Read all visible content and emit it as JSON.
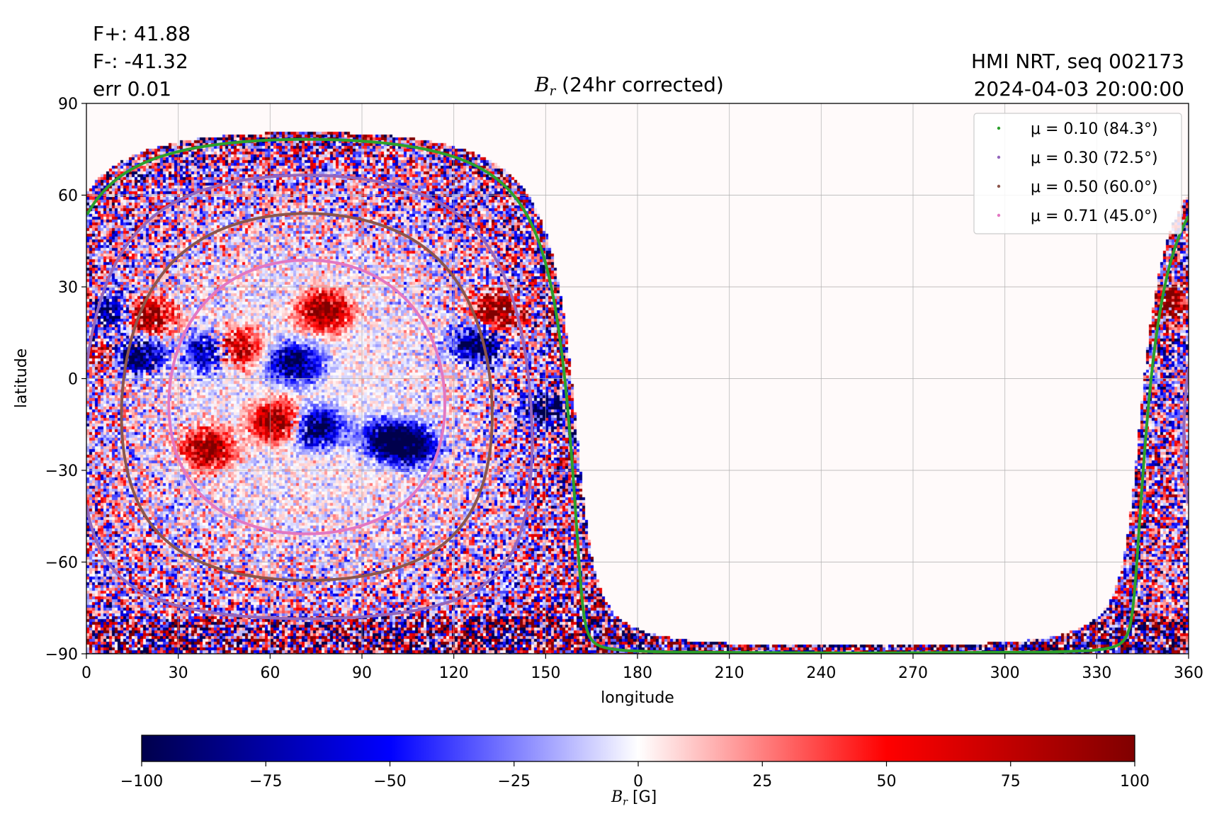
{
  "header": {
    "flux_plus": "F+: 41.88",
    "flux_minus": "F-: -41.32",
    "error": "err 0.01",
    "source": "HMI NRT, seq 002173",
    "datetime": "2024-04-03 20:00:00",
    "title_symbol": "B",
    "title_subscript": "r",
    "title_suffix": " (24hr corrected)"
  },
  "colorbar": {
    "label_symbol": "B",
    "label_subscript": "r",
    "label_unit": " [G]",
    "ticks": [
      "−100",
      "−75",
      "−50",
      "−25",
      "0",
      "25",
      "50",
      "75",
      "100"
    ],
    "range": [
      -100,
      100
    ],
    "colormap": "seismic",
    "colors": {
      "low": "#00004c",
      "mid_low": "#0000ff",
      "zero": "#ffffff",
      "mid_high": "#ff0000",
      "high": "#800000"
    }
  },
  "chart_data": {
    "type": "heatmap",
    "title": "B_r (24hr corrected)",
    "xlabel": "longitude",
    "ylabel": "latitude",
    "xlim": [
      0,
      360
    ],
    "ylim": [
      -90,
      90
    ],
    "xticks": [
      0,
      30,
      60,
      90,
      120,
      150,
      180,
      210,
      240,
      270,
      300,
      330,
      360
    ],
    "yticks": [
      -90,
      -60,
      -30,
      0,
      30,
      60,
      90
    ],
    "ytick_labels": [
      "−90",
      "−60",
      "−30",
      "0",
      "30",
      "60",
      "90"
    ],
    "grid": true,
    "legend_position": "top-right",
    "disk_center": {
      "lon": 72,
      "lat": -6
    },
    "series": [
      {
        "name": "μ = 0.10 (84.3°)",
        "mu": 0.1,
        "angle_deg": 84.3,
        "color": "#2ca02c"
      },
      {
        "name": "μ = 0.30 (72.5°)",
        "mu": 0.3,
        "angle_deg": 72.5,
        "color": "#9467bd"
      },
      {
        "name": "μ = 0.50 (60.0°)",
        "mu": 0.5,
        "angle_deg": 60.0,
        "color": "#8c564b"
      },
      {
        "name": "μ = 0.71 (45.0°)",
        "mu": 0.71,
        "angle_deg": 45.0,
        "color": "#e377c2"
      }
    ],
    "active_regions": [
      {
        "lon": 6,
        "lat": 22,
        "polarity": "negative"
      },
      {
        "lon": 2,
        "lat": 8,
        "polarity": "positive"
      },
      {
        "lon": 20,
        "lat": 20,
        "polarity": "positive"
      },
      {
        "lon": 17,
        "lat": 8,
        "polarity": "negative"
      },
      {
        "lon": 40,
        "lat": -23,
        "polarity": "positive"
      },
      {
        "lon": 48,
        "lat": 10,
        "polarity": "positive"
      },
      {
        "lon": 41,
        "lat": 9,
        "polarity": "negative"
      },
      {
        "lon": 62,
        "lat": -14,
        "polarity": "positive"
      },
      {
        "lon": 75,
        "lat": -16,
        "polarity": "negative"
      },
      {
        "lon": 68,
        "lat": 5,
        "polarity": "negative"
      },
      {
        "lon": 98,
        "lat": -20,
        "polarity": "negative"
      },
      {
        "lon": 107,
        "lat": -22,
        "polarity": "negative"
      },
      {
        "lon": 128,
        "lat": 11,
        "polarity": "negative"
      },
      {
        "lon": 134,
        "lat": 22,
        "polarity": "positive"
      },
      {
        "lon": 78,
        "lat": 22,
        "polarity": "positive"
      },
      {
        "lon": 150,
        "lat": -10,
        "polarity": "negative"
      },
      {
        "lon": 358,
        "lat": 8,
        "polarity": "negative"
      },
      {
        "lon": 356,
        "lat": 24,
        "polarity": "positive"
      }
    ]
  }
}
